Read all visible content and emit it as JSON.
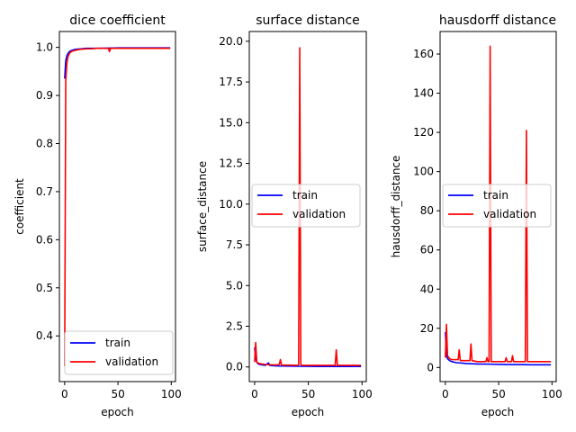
{
  "chart_data": [
    {
      "type": "line",
      "title": "dice coefficient",
      "xlabel": "epoch",
      "ylabel": "coefficient",
      "xlim": [
        -4.95,
        103.95
      ],
      "ylim": [
        0.305,
        1.033
      ],
      "xticks": [
        0,
        50,
        100
      ],
      "yticks": [
        0.4,
        0.5,
        0.6,
        0.7,
        0.8,
        0.9,
        1.0
      ],
      "ytick_labels": [
        "0.4",
        "0.5",
        "0.6",
        "0.7",
        "0.8",
        "0.9",
        "1.0"
      ],
      "legend": "lower-right",
      "grid": false,
      "series": [
        {
          "name": "train",
          "color": "#0000ff",
          "x": [
            0,
            1,
            2,
            3,
            4,
            5,
            7,
            10,
            15,
            20,
            30,
            50,
            70,
            99
          ],
          "y": [
            0.935,
            0.972,
            0.982,
            0.987,
            0.99,
            0.992,
            0.994,
            0.996,
            0.997,
            0.998,
            0.998,
            0.999,
            0.999,
            0.999
          ]
        },
        {
          "name": "validation",
          "color": "#ff0000",
          "x": [
            0,
            1,
            2,
            3,
            4,
            5,
            7,
            10,
            15,
            20,
            25,
            30,
            41,
            42,
            43,
            50,
            70,
            99
          ],
          "y": [
            0.337,
            0.93,
            0.965,
            0.98,
            0.985,
            0.989,
            0.992,
            0.994,
            0.996,
            0.997,
            0.997,
            0.998,
            0.998,
            0.991,
            0.998,
            0.998,
            0.998,
            0.998
          ]
        }
      ]
    },
    {
      "type": "line",
      "title": "surface distance",
      "xlabel": "epoch",
      "ylabel": "surface_distance",
      "xlim": [
        -4.95,
        103.95
      ],
      "ylim": [
        -0.9,
        20.6
      ],
      "xticks": [
        0,
        50,
        100
      ],
      "yticks": [
        0,
        2.5,
        5,
        7.5,
        10,
        12.5,
        15,
        17.5,
        20
      ],
      "ytick_labels": [
        "0.0",
        "2.5",
        "5.0",
        "7.5",
        "10.0",
        "12.5",
        "15.0",
        "17.5",
        "20.0"
      ],
      "legend": "center-right",
      "grid": false,
      "series": [
        {
          "name": "train",
          "color": "#0000ff",
          "x": [
            0,
            1,
            2,
            3,
            5,
            10,
            13,
            14,
            20,
            40,
            60,
            80,
            99
          ],
          "y": [
            1.2,
            0.5,
            0.3,
            0.2,
            0.15,
            0.1,
            0.25,
            0.1,
            0.06,
            0.04,
            0.03,
            0.03,
            0.03
          ]
        },
        {
          "name": "validation",
          "color": "#ff0000",
          "x": [
            0,
            1,
            2,
            3,
            5,
            10,
            20,
            23,
            24,
            25,
            40,
            41,
            42,
            43,
            44,
            50,
            60,
            75,
            76,
            77,
            80,
            99
          ],
          "y": [
            0.3,
            1.5,
            0.3,
            0.25,
            0.2,
            0.15,
            0.12,
            0.15,
            0.45,
            0.12,
            0.1,
            0.15,
            19.6,
            0.15,
            0.1,
            0.1,
            0.1,
            0.1,
            1.05,
            0.1,
            0.1,
            0.1
          ]
        }
      ]
    },
    {
      "type": "line",
      "title": "hausdorff distance",
      "xlabel": "epoch",
      "ylabel": "hausdorff_distance",
      "xlim": [
        -4.95,
        103.95
      ],
      "ylim": [
        -7.2,
        171.5
      ],
      "xticks": [
        0,
        50,
        100
      ],
      "yticks": [
        0,
        20,
        40,
        60,
        80,
        100,
        120,
        140,
        160
      ],
      "ytick_labels": [
        "0",
        "20",
        "40",
        "60",
        "80",
        "100",
        "120",
        "140",
        "160"
      ],
      "legend": "center-right",
      "grid": false,
      "series": [
        {
          "name": "train",
          "color": "#0000ff",
          "x": [
            0,
            1,
            2,
            4,
            6,
            10,
            20,
            30,
            40,
            50,
            60,
            70,
            80,
            99
          ],
          "y": [
            18,
            6,
            4.5,
            3.5,
            3,
            2.5,
            2,
            1.8,
            1.7,
            1.6,
            1.5,
            1.5,
            1.4,
            1.4
          ]
        },
        {
          "name": "validation",
          "color": "#ff0000",
          "x": [
            0,
            1,
            2,
            4,
            6,
            8,
            12,
            13,
            14,
            18,
            23,
            24,
            25,
            30,
            38,
            39,
            40,
            41,
            42,
            43,
            44,
            50,
            56,
            57,
            58,
            62,
            63,
            64,
            70,
            74,
            75,
            76,
            77,
            78,
            85,
            99
          ],
          "y": [
            5,
            22,
            6,
            4.5,
            4,
            4,
            4,
            9,
            3.5,
            3.5,
            3.5,
            12,
            3.5,
            3,
            3,
            5,
            3,
            3,
            164,
            3,
            3,
            3,
            3,
            5,
            3,
            3,
            6,
            3,
            3,
            3,
            3,
            121,
            3,
            3,
            3,
            3
          ]
        }
      ]
    }
  ]
}
